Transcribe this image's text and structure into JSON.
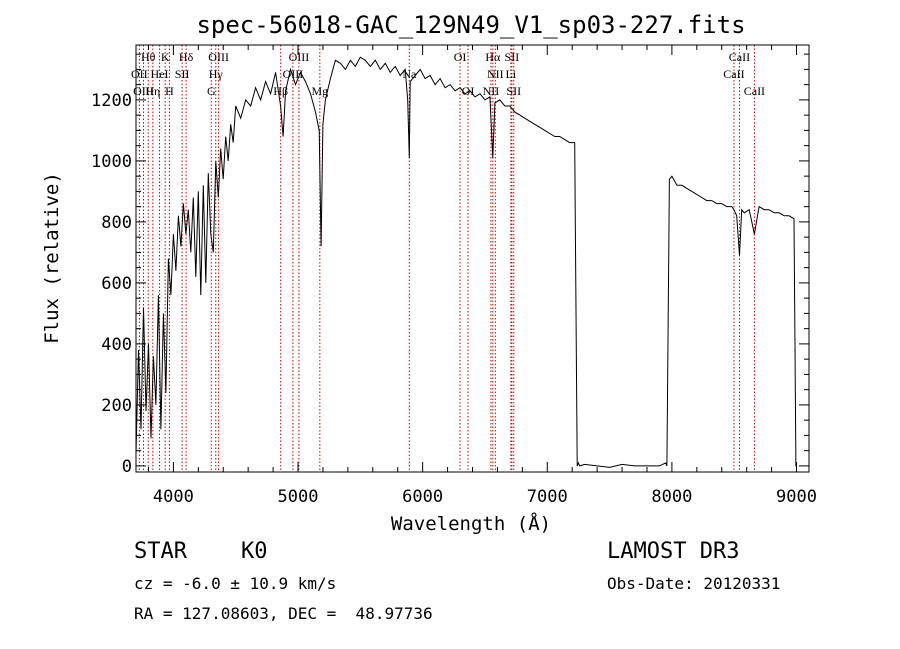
{
  "chart_data": {
    "type": "line",
    "title": "spec-56018-GAC_129N49_V1_sp03-227.fits",
    "xlabel": "Wavelength (Å)",
    "ylabel": "Flux (relative)",
    "xlim": [
      3700,
      9100
    ],
    "ylim": [
      -20,
      1380
    ],
    "x_ticks": [
      4000,
      5000,
      6000,
      7000,
      8000,
      9000
    ],
    "x_tick_labels": [
      "4000",
      "5000",
      "6000",
      "7000",
      "8000",
      "9000"
    ],
    "y_ticks": [
      0,
      200,
      400,
      600,
      800,
      1000,
      1200
    ],
    "y_tick_labels": [
      "0",
      "200",
      "400",
      "600",
      "800",
      "1000",
      "1200"
    ],
    "grid": false,
    "series": [
      {
        "name": "spectrum",
        "x": [
          3700,
          3720,
          3740,
          3760,
          3780,
          3800,
          3820,
          3840,
          3860,
          3880,
          3900,
          3920,
          3940,
          3960,
          3980,
          4000,
          4020,
          4040,
          4060,
          4080,
          4100,
          4120,
          4140,
          4160,
          4180,
          4200,
          4220,
          4240,
          4260,
          4280,
          4300,
          4320,
          4340,
          4360,
          4380,
          4400,
          4420,
          4440,
          4460,
          4480,
          4500,
          4540,
          4580,
          4620,
          4660,
          4700,
          4740,
          4780,
          4820,
          4860,
          4880,
          4900,
          4940,
          4980,
          5020,
          5060,
          5100,
          5140,
          5170,
          5185,
          5200,
          5220,
          5260,
          5300,
          5340,
          5380,
          5420,
          5460,
          5500,
          5540,
          5580,
          5620,
          5660,
          5700,
          5740,
          5780,
          5820,
          5860,
          5880,
          5893,
          5900,
          5940,
          5980,
          6020,
          6060,
          6100,
          6140,
          6180,
          6220,
          6260,
          6300,
          6340,
          6380,
          6420,
          6460,
          6500,
          6540,
          6563,
          6580,
          6620,
          6660,
          6700,
          6740,
          6780,
          6820,
          6860,
          6900,
          6940,
          6980,
          7020,
          7060,
          7100,
          7140,
          7180,
          7220,
          7240,
          7250,
          7260,
          7300,
          7400,
          7500,
          7600,
          7700,
          7800,
          7900,
          7950,
          7960,
          7980,
          8000,
          8040,
          8080,
          8120,
          8160,
          8200,
          8240,
          8280,
          8320,
          8360,
          8400,
          8440,
          8480,
          8498,
          8520,
          8542,
          8560,
          8580,
          8620,
          8662,
          8700,
          8740,
          8780,
          8820,
          8860,
          8900,
          8940,
          8980,
          8995,
          9000
        ],
        "y": [
          40,
          380,
          120,
          520,
          180,
          400,
          90,
          360,
          200,
          560,
          120,
          500,
          240,
          680,
          560,
          760,
          640,
          820,
          720,
          860,
          760,
          840,
          700,
          880,
          620,
          900,
          560,
          920,
          600,
          960,
          760,
          700,
          1000,
          880,
          1040,
          940,
          1080,
          1000,
          1120,
          1060,
          1180,
          1140,
          1200,
          1180,
          1240,
          1200,
          1260,
          1220,
          1290,
          1180,
          1080,
          1230,
          1300,
          1250,
          1290,
          1260,
          1220,
          1160,
          1100,
          720,
          1120,
          1200,
          1270,
          1330,
          1320,
          1300,
          1330,
          1310,
          1340,
          1330,
          1310,
          1330,
          1300,
          1320,
          1290,
          1310,
          1280,
          1300,
          1200,
          1010,
          1260,
          1280,
          1300,
          1270,
          1280,
          1250,
          1270,
          1240,
          1250,
          1230,
          1240,
          1220,
          1230,
          1210,
          1220,
          1200,
          1210,
          1010,
          1190,
          1200,
          1180,
          1180,
          1160,
          1150,
          1140,
          1130,
          1120,
          1110,
          1100,
          1090,
          1080,
          1080,
          1070,
          1060,
          1060,
          0,
          10,
          0,
          5,
          0,
          -5,
          5,
          0,
          0,
          0,
          10,
          0,
          940,
          950,
          920,
          920,
          910,
          900,
          890,
          880,
          870,
          870,
          860,
          860,
          850,
          850,
          840,
          820,
          690,
          840,
          830,
          840,
          760,
          850,
          840,
          840,
          830,
          830,
          820,
          820,
          810,
          0,
          0
        ]
      }
    ],
    "line_markers": [
      {
        "label": "Hθ",
        "wavelength": 3798,
        "row": 1
      },
      {
        "label": "OII",
        "wavelength": 3727,
        "row": 2
      },
      {
        "label": "OIII",
        "wavelength": 3760,
        "row": 3
      },
      {
        "label": "Hη",
        "wavelength": 3835,
        "row": 3
      },
      {
        "label": "HeI",
        "wavelength": 3889,
        "row": 2
      },
      {
        "label": "K",
        "wavelength": 3934,
        "row": 1
      },
      {
        "label": "SII",
        "wavelength": 4070,
        "row": 2
      },
      {
        "label": "H",
        "wavelength": 3968,
        "row": 3
      },
      {
        "label": "Hδ",
        "wavelength": 4102,
        "row": 1
      },
      {
        "label": "OIII",
        "wavelength": 4363,
        "row": 1
      },
      {
        "label": "Hγ",
        "wavelength": 4340,
        "row": 2
      },
      {
        "label": "G",
        "wavelength": 4304,
        "row": 3
      },
      {
        "label": "OIII",
        "wavelength": 5007,
        "row": 1
      },
      {
        "label": "OIII",
        "wavelength": 4959,
        "row": 2
      },
      {
        "label": "Hβ",
        "wavelength": 4861,
        "row": 3
      },
      {
        "label": "Mg",
        "wavelength": 5175,
        "row": 3
      },
      {
        "label": "Na",
        "wavelength": 5893,
        "row": 2
      },
      {
        "label": "OI",
        "wavelength": 6300,
        "row": 1
      },
      {
        "label": "OI",
        "wavelength": 6364,
        "row": 3
      },
      {
        "label": "Hα",
        "wavelength": 6563,
        "row": 1
      },
      {
        "label": "SII",
        "wavelength": 6716,
        "row": 1
      },
      {
        "label": "NII",
        "wavelength": 6583,
        "row": 2
      },
      {
        "label": "Li",
        "wavelength": 6708,
        "row": 2
      },
      {
        "label": "NII",
        "wavelength": 6548,
        "row": 3
      },
      {
        "label": "SII",
        "wavelength": 6731,
        "row": 3
      },
      {
        "label": "CaII",
        "wavelength": 8542,
        "row": 1
      },
      {
        "label": "CaII",
        "wavelength": 8498,
        "row": 2
      },
      {
        "label": "CaII",
        "wavelength": 8662,
        "row": 3
      }
    ]
  },
  "info": {
    "class": "STAR",
    "subclass": "K0",
    "survey": "LAMOST DR3",
    "cz": "cz = -6.0 ± 10.9 km/s",
    "obs_date": "Obs-Date: 20120331",
    "coords": "RA = 127.08603, DEC =  48.97736"
  },
  "colors": {
    "spectrum": "#000000",
    "markers": "#cc0000",
    "axes": "#000000"
  }
}
